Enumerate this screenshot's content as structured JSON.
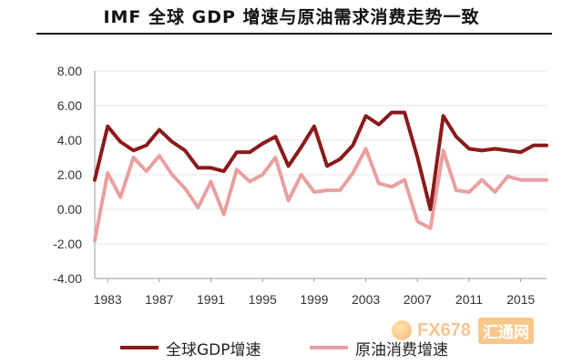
{
  "chart_data": {
    "type": "line",
    "title": "IMF 全球 GDP 增速与原油需求消费走势一致",
    "xlabel": "",
    "ylabel": "",
    "ylim": [
      -4,
      8
    ],
    "yticks": [
      "8.00",
      "6.00",
      "4.00",
      "2.00",
      "0.00",
      "-2.00",
      "-4.00"
    ],
    "ytick_values": [
      8,
      6,
      4,
      2,
      0,
      -2,
      -4
    ],
    "xticks": [
      "1983",
      "1987",
      "1991",
      "1995",
      "1999",
      "2003",
      "2007",
      "2011",
      "2015"
    ],
    "x": [
      1982,
      1983,
      1984,
      1985,
      1986,
      1987,
      1988,
      1989,
      1990,
      1991,
      1992,
      1993,
      1994,
      1995,
      1996,
      1997,
      1998,
      1999,
      2000,
      2001,
      2002,
      2003,
      2004,
      2005,
      2006,
      2007,
      2008,
      2009,
      2010,
      2011,
      2012,
      2013,
      2014,
      2015,
      2016,
      2017
    ],
    "series": [
      {
        "name": "全球GDP增速",
        "color": "#8b1a1a",
        "values": [
          1.7,
          4.8,
          3.9,
          3.4,
          3.7,
          4.6,
          3.9,
          3.4,
          2.4,
          2.4,
          2.2,
          3.3,
          3.3,
          3.8,
          4.2,
          2.5,
          3.6,
          4.8,
          2.5,
          2.9,
          3.7,
          5.4,
          4.9,
          5.6,
          5.6,
          3.0,
          0.0,
          5.4,
          4.2,
          3.5,
          3.4,
          3.5,
          3.4,
          3.3,
          3.7,
          3.7
        ]
      },
      {
        "name": "原油消费增速",
        "color": "#e8a0a0",
        "values": [
          -1.8,
          2.1,
          0.7,
          3.0,
          2.2,
          3.1,
          2.0,
          1.2,
          0.1,
          1.6,
          -0.3,
          2.3,
          1.6,
          2.0,
          3.0,
          0.5,
          2.0,
          1.0,
          1.1,
          1.1,
          2.1,
          3.5,
          1.5,
          1.3,
          1.7,
          -0.7,
          -1.1,
          3.4,
          1.1,
          1.0,
          1.7,
          1.0,
          1.9,
          1.7,
          1.7,
          1.7
        ]
      }
    ]
  },
  "watermark": {
    "brand": "FX678",
    "cn": "汇通网"
  }
}
